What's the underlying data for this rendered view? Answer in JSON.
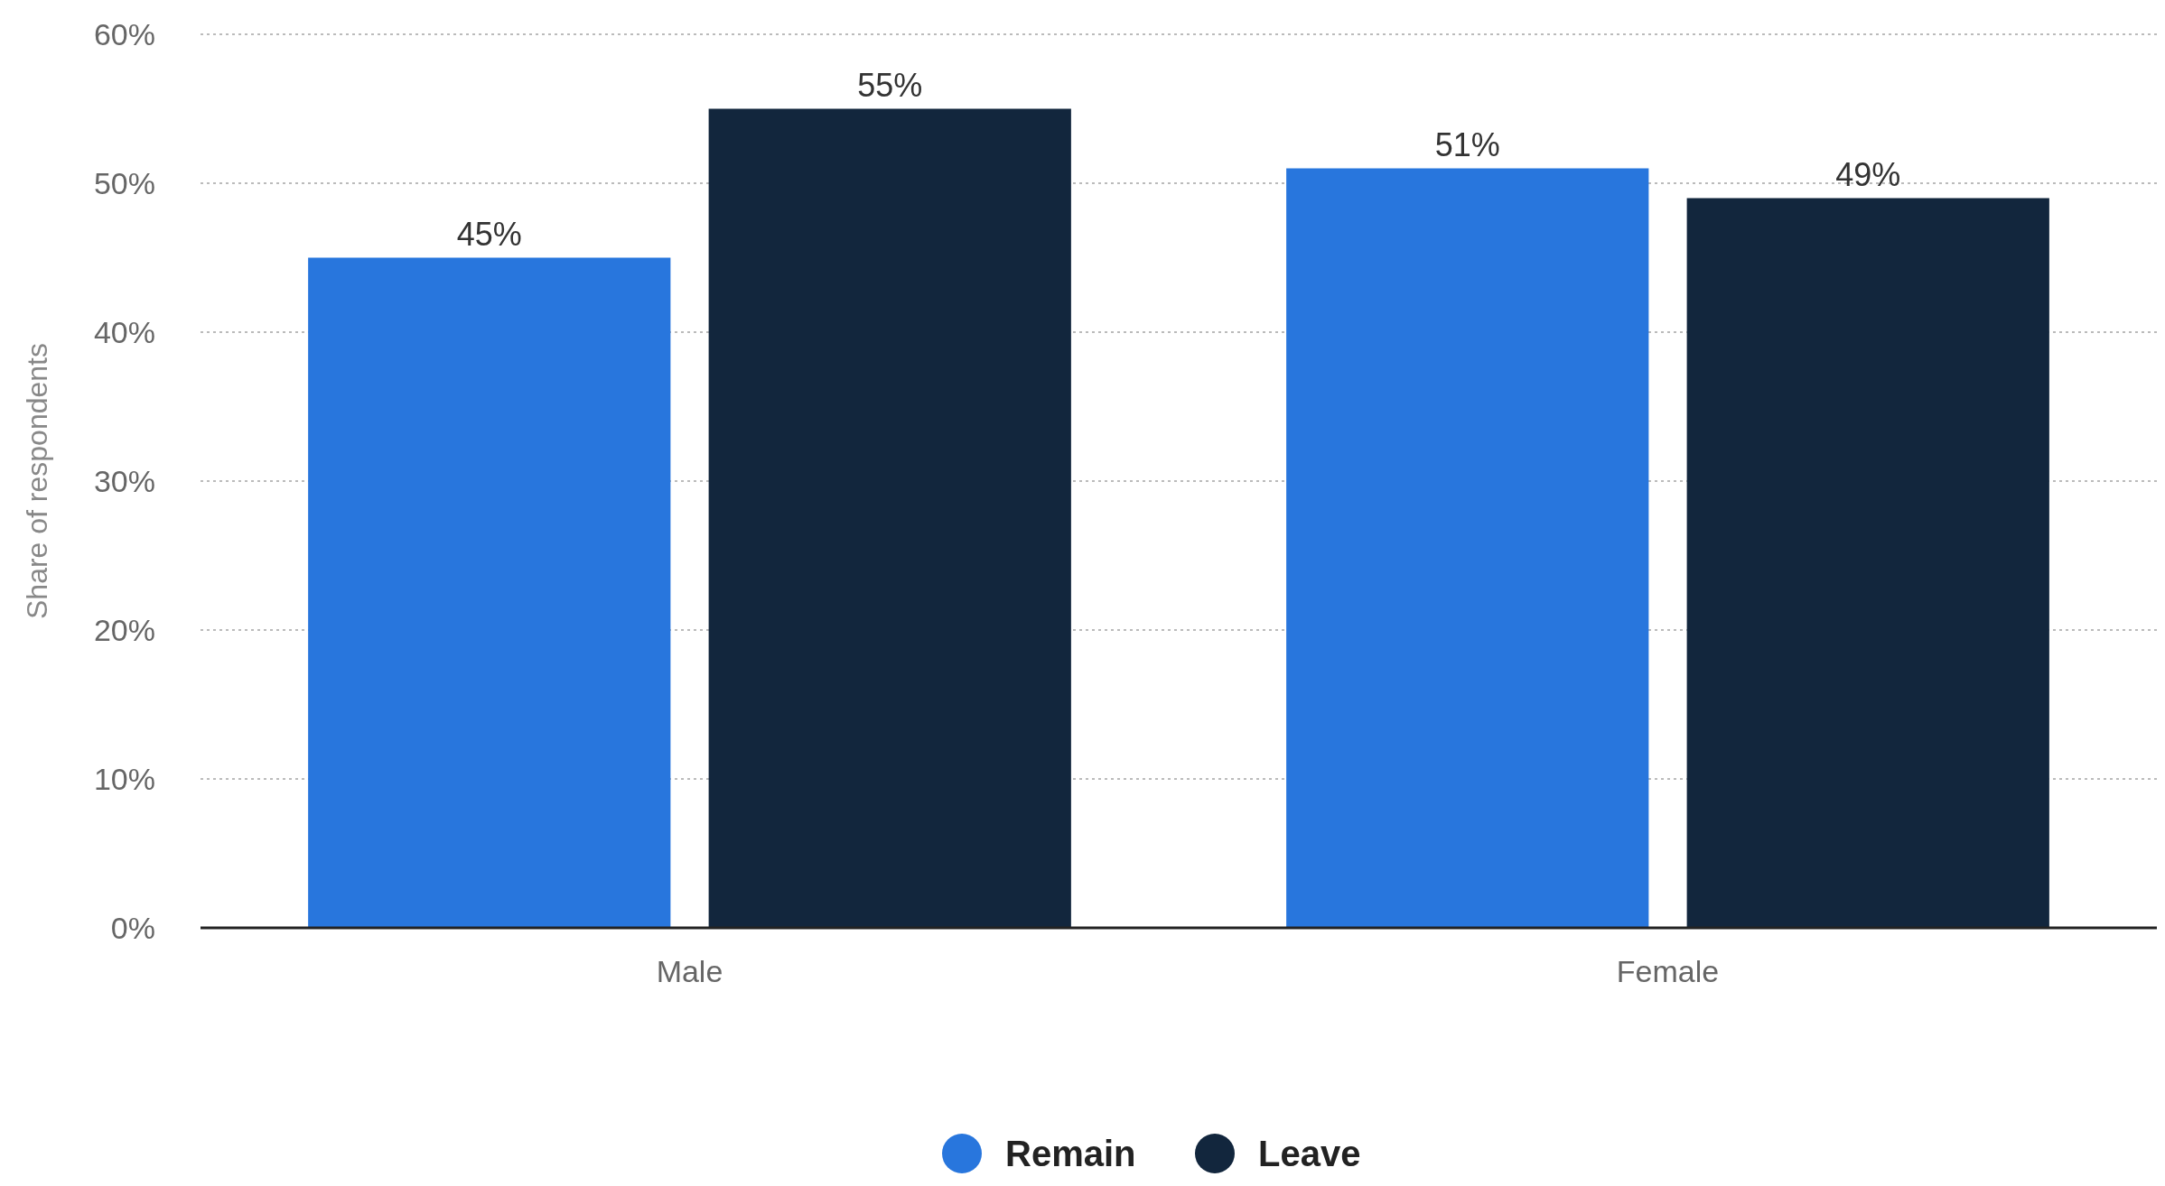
{
  "chart_data": {
    "type": "bar",
    "ylabel": "Share of respondents",
    "categories": [
      "Male",
      "Female"
    ],
    "series": [
      {
        "name": "Remain",
        "color": "#2876dd",
        "values": [
          45,
          51
        ],
        "value_labels": [
          "45%",
          "51%"
        ]
      },
      {
        "name": "Leave",
        "color": "#12263d",
        "values": [
          55,
          49
        ],
        "value_labels": [
          "55%",
          "49%"
        ]
      }
    ],
    "ylim": [
      0,
      60
    ],
    "yticks": [
      {
        "value": 0,
        "label": "0%"
      },
      {
        "value": 10,
        "label": "10%"
      },
      {
        "value": 20,
        "label": "20%"
      },
      {
        "value": 30,
        "label": "30%"
      },
      {
        "value": 40,
        "label": "40%"
      },
      {
        "value": 50,
        "label": "50%"
      },
      {
        "value": 60,
        "label": "60%"
      }
    ],
    "grid": "y",
    "legend": "bottom"
  }
}
